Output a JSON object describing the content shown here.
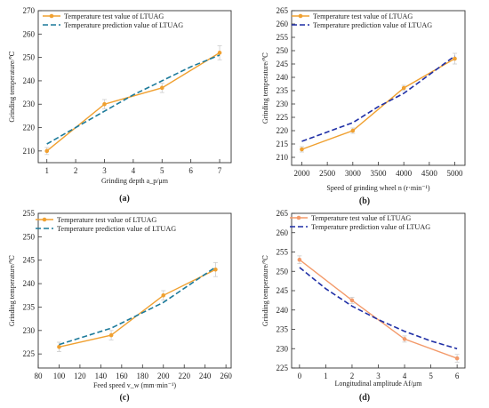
{
  "colors": {
    "test": "#F0A030",
    "prediction": "#1C7A9A",
    "prediction_b": "#1F2FA6",
    "prediction_d": "#1F2FA6",
    "test_d": "#F39A6A"
  },
  "chart_data": [
    {
      "panel": "(a)",
      "type": "line",
      "xlabel": "Grinding depth a_p/μm",
      "ylabel": "Grinding temperature/℃",
      "xlim": [
        0.7,
        7.4
      ],
      "ylim": [
        205,
        270
      ],
      "xticks": [
        "1",
        "2",
        "3",
        "4",
        "5",
        "6",
        "7"
      ],
      "yticks": [
        "210",
        "220",
        "230",
        "240",
        "250",
        "260",
        "270"
      ],
      "legend_position": "top-left",
      "series": [
        {
          "name": "Temperature test value of LTUAG",
          "style": "solid-marker",
          "x": [
            1,
            3,
            5,
            7
          ],
          "y": [
            210,
            230,
            237,
            252
          ],
          "err": [
            1.5,
            2,
            2,
            3
          ]
        },
        {
          "name": "Temperature prediction value of LTUAG",
          "style": "dashed",
          "x": [
            1,
            2,
            3,
            4,
            5,
            6,
            7
          ],
          "y": [
            213,
            220,
            227,
            234,
            240,
            246,
            251
          ]
        }
      ]
    },
    {
      "panel": "(b)",
      "type": "line",
      "xlabel": "Speed of grinding wheel n (r·min⁻¹)",
      "ylabel": "Grinding temperature/℃",
      "xlim": [
        1800,
        5200
      ],
      "ylim": [
        207,
        265
      ],
      "xticks": [
        "2000",
        "2500",
        "3000",
        "3500",
        "4000",
        "4500",
        "5000"
      ],
      "yticks": [
        "210",
        "215",
        "220",
        "225",
        "230",
        "235",
        "240",
        "245",
        "250",
        "255",
        "260",
        "265"
      ],
      "legend_position": "top-left",
      "series": [
        {
          "name": "Temperature test value of LTUAG",
          "style": "solid-marker",
          "x": [
            2000,
            3000,
            4000,
            5000
          ],
          "y": [
            213,
            220,
            236,
            247
          ],
          "err": [
            1,
            1,
            1,
            2
          ]
        },
        {
          "name": "Temperature prediction value of LTUAG",
          "style": "dashed",
          "x": [
            2000,
            3000,
            3500,
            4000,
            4500,
            5000
          ],
          "y": [
            216,
            223,
            229,
            234,
            241,
            248
          ]
        }
      ]
    },
    {
      "panel": "(c)",
      "type": "line",
      "xlabel": "Feed speed v_w (mm·min⁻¹)",
      "ylabel": "Grinding temperature/℃",
      "xlim": [
        80,
        265
      ],
      "ylim": [
        222,
        255
      ],
      "xticks": [
        "80",
        "100",
        "120",
        "140",
        "160",
        "180",
        "200",
        "220",
        "240",
        "260"
      ],
      "yticks": [
        "225",
        "230",
        "235",
        "240",
        "245",
        "250",
        "255"
      ],
      "legend_position": "top-left",
      "series": [
        {
          "name": "Temperature test value of LTUAG",
          "style": "solid-marker",
          "x": [
            100,
            150,
            200,
            250
          ],
          "y": [
            226.5,
            229,
            237.5,
            243
          ],
          "err": [
            1,
            1,
            1,
            1.5
          ]
        },
        {
          "name": "Temperature prediction value of LTUAG",
          "style": "dashed",
          "x": [
            100,
            150,
            200,
            250
          ],
          "y": [
            227,
            230.5,
            236,
            243.5
          ]
        }
      ]
    },
    {
      "panel": "(d)",
      "type": "line",
      "xlabel": "Longitudinal amplitude Af/μm",
      "ylabel": "Grinding temperature/℃",
      "xlim": [
        -0.3,
        6.3
      ],
      "ylim": [
        225,
        265
      ],
      "xticks": [
        "0",
        "1",
        "2",
        "3",
        "4",
        "5",
        "6"
      ],
      "yticks": [
        "225",
        "230",
        "235",
        "240",
        "245",
        "250",
        "255",
        "260",
        "265"
      ],
      "legend_position": "top-left",
      "series": [
        {
          "name": "Temperature test value of LTUAG",
          "style": "solid-marker",
          "x": [
            0,
            2,
            4,
            6
          ],
          "y": [
            253,
            242.5,
            232.5,
            227.5
          ],
          "err": [
            1,
            0.8,
            0.8,
            1
          ]
        },
        {
          "name": "Temperature prediction value of LTUAG",
          "style": "dashed",
          "x": [
            0,
            1,
            2,
            3,
            4,
            5,
            6
          ],
          "y": [
            251,
            245.5,
            241,
            237.5,
            234.5,
            232,
            230
          ]
        }
      ]
    }
  ]
}
